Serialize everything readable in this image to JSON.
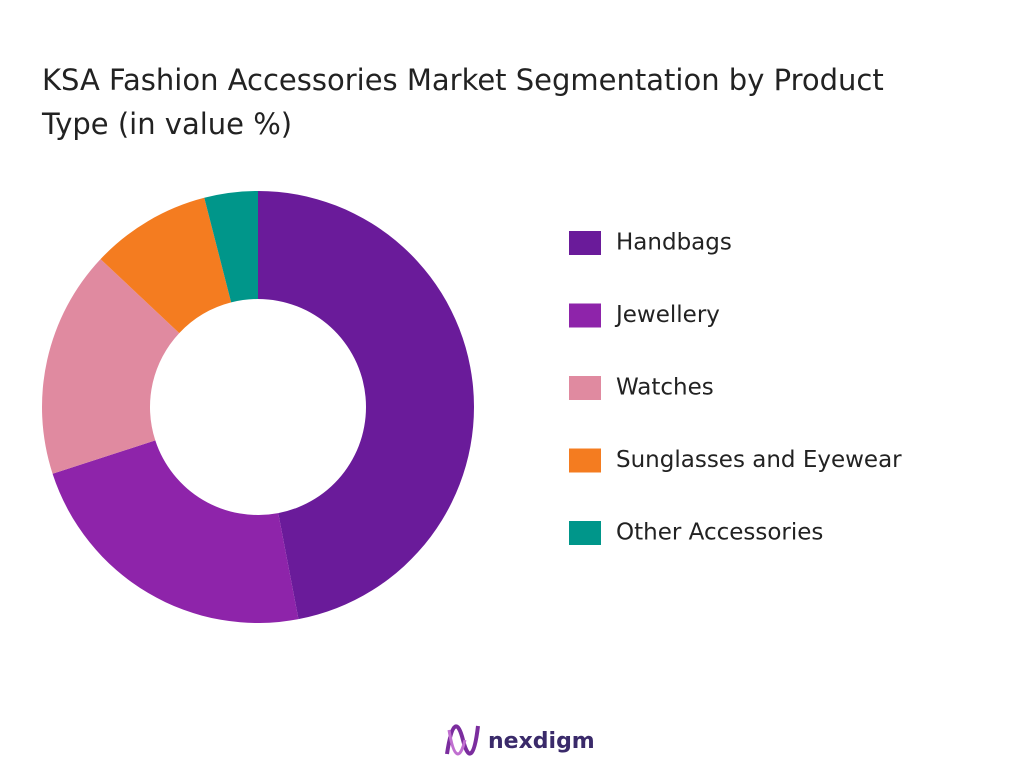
{
  "chart_data": {
    "type": "donut",
    "title": "KSA Fashion Accessories Market Segmentation by Product Type (in value %)",
    "categories": [
      "Handbags",
      "Jewellery",
      "Watches",
      "Sunglasses and Eyewear",
      "Other Accessories"
    ],
    "values": [
      47,
      23,
      17,
      9,
      4
    ],
    "colors": [
      "#6a1b9a",
      "#8e24aa",
      "#e08aa0",
      "#f47c20",
      "#00968a"
    ],
    "legend": "right"
  },
  "brand": "nexdigm"
}
